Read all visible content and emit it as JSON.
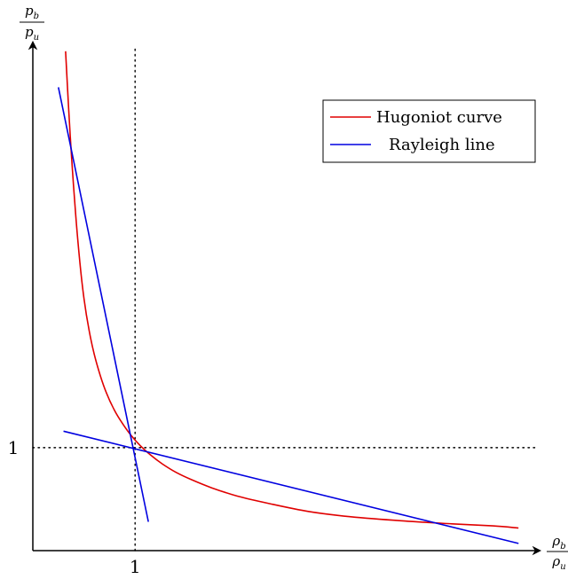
{
  "chart_data": {
    "type": "line",
    "title": "",
    "xlabel": {
      "symbol": "ρ",
      "num_sub": "b",
      "den_sub": "u"
    },
    "ylabel": {
      "symbol": "p",
      "num_sub": "b",
      "den_sub": "u"
    },
    "xlim": [
      0,
      4.8
    ],
    "ylim": [
      0,
      4.9
    ],
    "grid": false,
    "legend_position": "top-right",
    "x_ticks": [
      {
        "value": 1,
        "label": "1"
      }
    ],
    "y_ticks": [
      {
        "value": 1,
        "label": "1"
      }
    ],
    "reference_lines": [
      {
        "orientation": "vertical",
        "value": 1,
        "style": "dotted"
      },
      {
        "orientation": "horizontal",
        "value": 1,
        "style": "dotted"
      }
    ],
    "series": [
      {
        "name": "Hugoniot curve",
        "color": "#e00000",
        "x": [
          0.32,
          0.35,
          0.38,
          0.42,
          0.46,
          0.5,
          0.55,
          0.6,
          0.66,
          0.72,
          0.8,
          0.88,
          0.96,
          1.05,
          1.15,
          1.27,
          1.4,
          1.55,
          1.75,
          2.0,
          2.3,
          2.7,
          3.1,
          3.6,
          4.1,
          4.5,
          4.75
        ],
        "y": [
          4.85,
          4.3,
          3.8,
          3.25,
          2.8,
          2.45,
          2.14,
          1.91,
          1.7,
          1.53,
          1.36,
          1.23,
          1.12,
          1.02,
          0.93,
          0.84,
          0.76,
          0.69,
          0.61,
          0.53,
          0.46,
          0.38,
          0.33,
          0.29,
          0.26,
          0.24,
          0.22
        ]
      },
      {
        "name": "Rayleigh line",
        "color": "#0000e0",
        "segments": [
          {
            "x": [
              0.25,
              1.13
            ],
            "y": [
              4.5,
              0.28
            ]
          },
          {
            "x": [
              0.3,
              4.75
            ],
            "y": [
              1.16,
              0.07
            ]
          }
        ]
      }
    ]
  }
}
